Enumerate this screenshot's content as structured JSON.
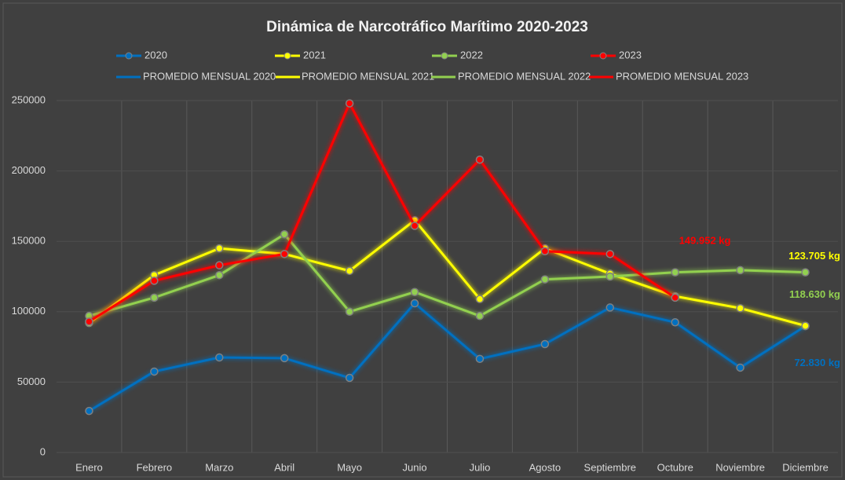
{
  "chart_data": {
    "type": "line",
    "title": "Dinámica de Narcotráfico Marítimo 2020-2023",
    "categories": [
      "Enero",
      "Febrero",
      "Marzo",
      "Abril",
      "Mayo",
      "Junio",
      "Julio",
      "Agosto",
      "Septiembre",
      "Octubre",
      "Noviembre",
      "Diciembre"
    ],
    "series": [
      {
        "name": "2020",
        "color": "#0070c0",
        "values": [
          29500,
          57500,
          67500,
          67000,
          53000,
          106000,
          66500,
          77000,
          103000,
          92500,
          60300,
          89800
        ]
      },
      {
        "name": "2021",
        "color": "#ffff00",
        "values": [
          92000,
          126000,
          145000,
          141000,
          129000,
          165000,
          109000,
          145000,
          127000,
          111000,
          102500,
          90000
        ]
      },
      {
        "name": "2022",
        "color": "#92d050",
        "values": [
          97000,
          110000,
          126000,
          155000,
          100000,
          114000,
          97000,
          123000,
          125000,
          128000,
          129500,
          128000
        ]
      },
      {
        "name": "2023",
        "color": "#ff0000",
        "values": [
          93000,
          122000,
          133000,
          141000,
          248000,
          161000,
          208000,
          143000,
          141000,
          110000,
          null,
          null
        ]
      }
    ],
    "averages": [
      {
        "name": "PROMEDIO MENSUAL 2020",
        "color": "#0070c0",
        "value": 72830,
        "value_label": "72.830 kg"
      },
      {
        "name": "PROMEDIO MENSUAL 2021",
        "color": "#ffff00",
        "value": 123705,
        "value_label": "123.705 kg"
      },
      {
        "name": "PROMEDIO MENSUAL 2022",
        "color": "#92d050",
        "value": 118630,
        "value_label": "118.630 kg"
      },
      {
        "name": "PROMEDIO MENSUAL 2023",
        "color": "#ff0000",
        "value": 149952,
        "value_label": "149.952 kg"
      }
    ],
    "ylim": [
      0,
      250000
    ],
    "yticks": [
      0,
      50000,
      100000,
      150000,
      200000,
      250000
    ],
    "grid": true
  }
}
